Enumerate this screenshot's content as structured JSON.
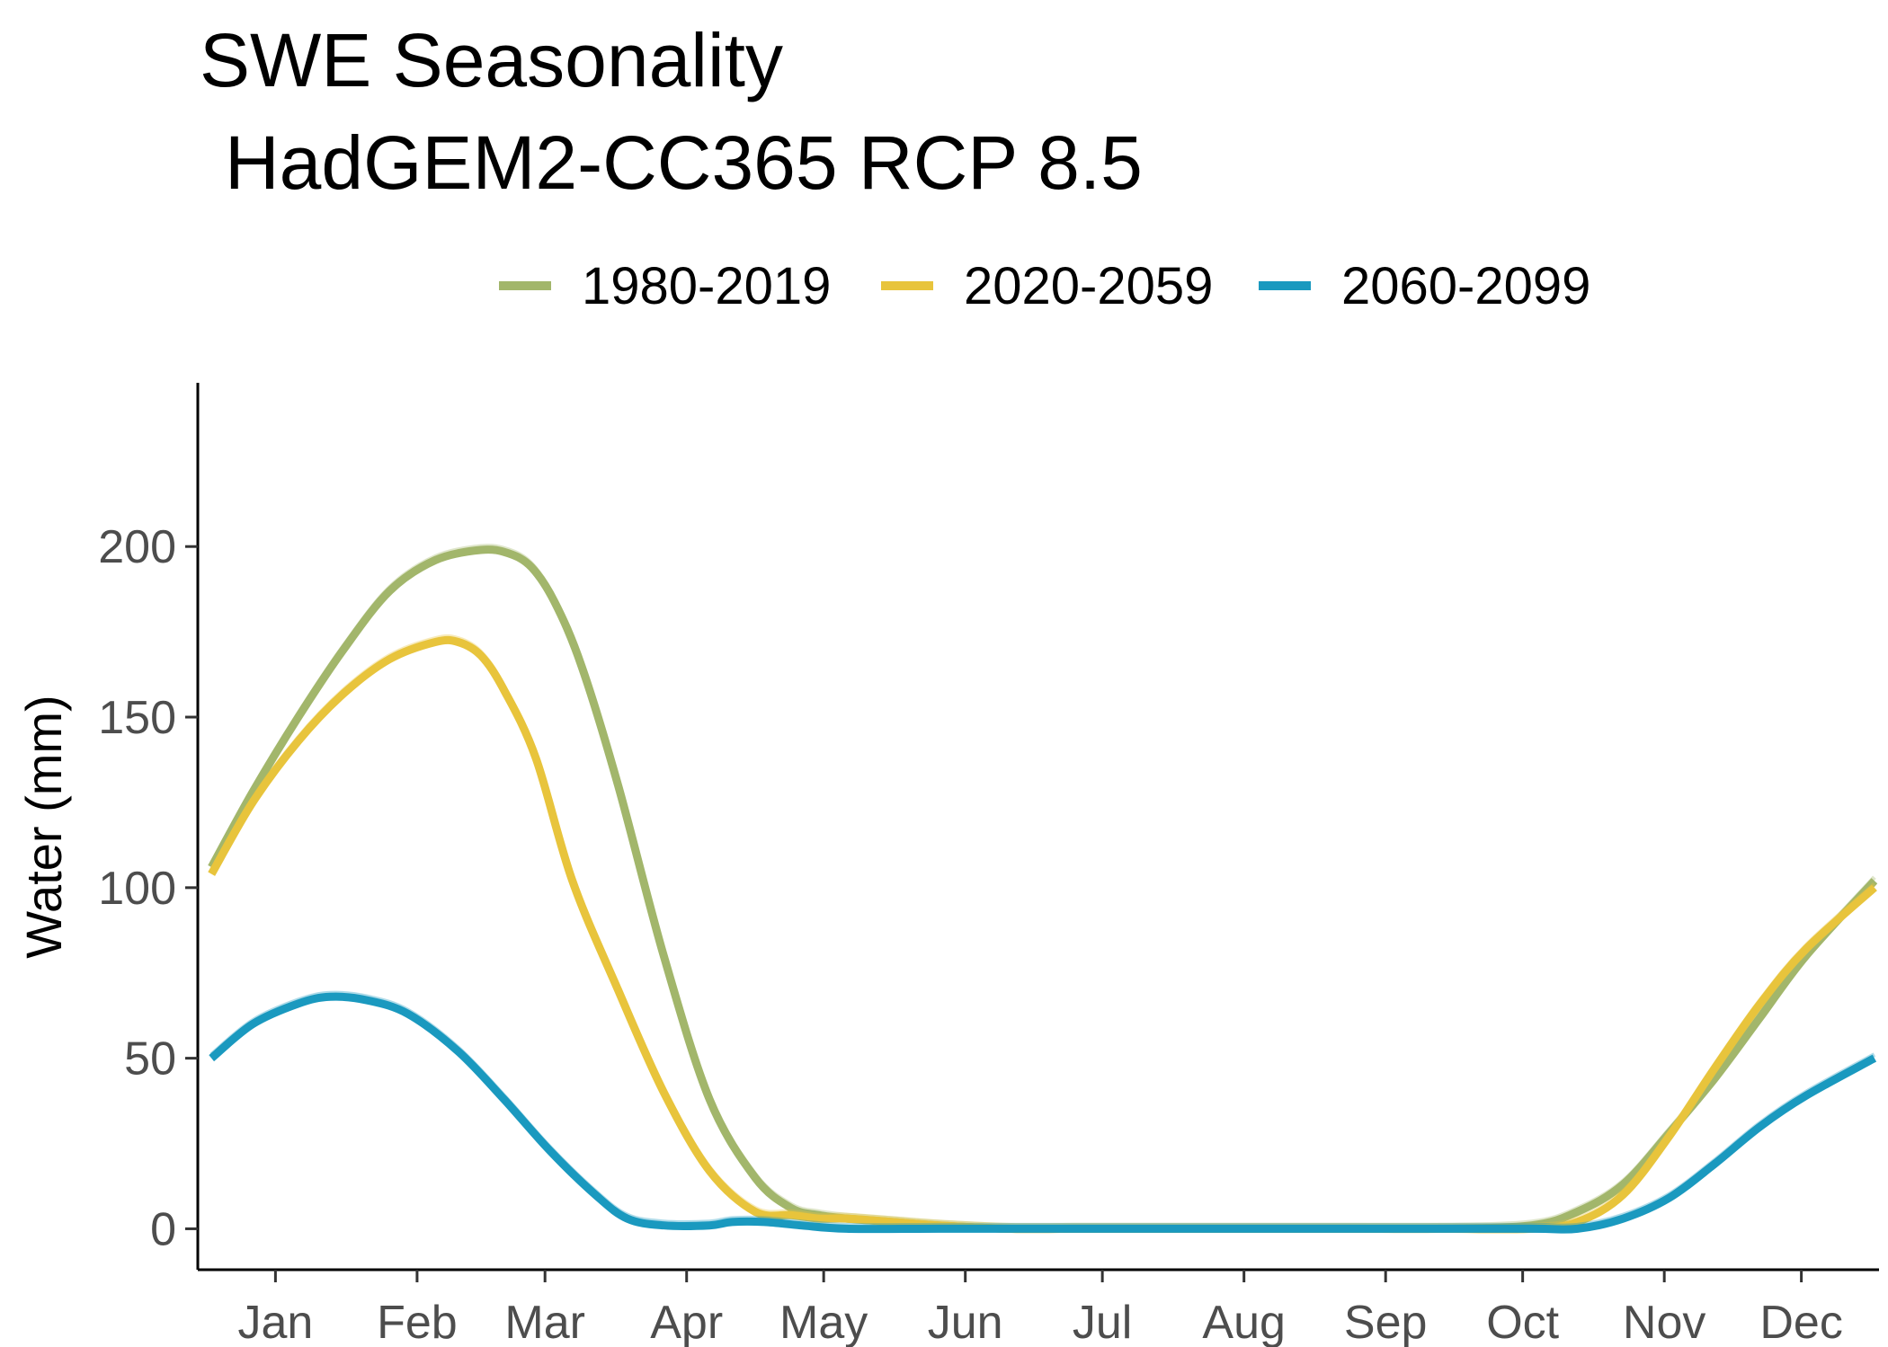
{
  "chart_data": {
    "type": "line",
    "title": "SWE Seasonality",
    "subtitle": "HadGEM2-CC365 RCP 8.5",
    "xlabel": "",
    "ylabel": "Water (mm)",
    "x_unit": "day of year",
    "xlim": [
      -2,
      366
    ],
    "ylim": [
      -12,
      248
    ],
    "x_ticks": [
      {
        "label": "Jan",
        "value": 15
      },
      {
        "label": "Feb",
        "value": 46
      },
      {
        "label": "Mar",
        "value": 74
      },
      {
        "label": "Apr",
        "value": 105
      },
      {
        "label": "May",
        "value": 135
      },
      {
        "label": "Jun",
        "value": 166
      },
      {
        "label": "Jul",
        "value": 196
      },
      {
        "label": "Aug",
        "value": 227
      },
      {
        "label": "Sep",
        "value": 258
      },
      {
        "label": "Oct",
        "value": 288
      },
      {
        "label": "Nov",
        "value": 319
      },
      {
        "label": "Dec",
        "value": 349
      }
    ],
    "y_ticks": [
      0,
      50,
      100,
      150,
      200
    ],
    "grid": false,
    "legend_position": "top",
    "series": [
      {
        "name": "1980-2019",
        "color": "#a2b66b",
        "x": [
          1,
          10,
          20,
          30,
          40,
          50,
          60,
          66,
          71,
          76,
          82,
          90,
          100,
          110,
          120,
          128,
          134,
          140,
          150,
          160,
          175,
          190,
          210,
          230,
          250,
          270,
          290,
          300,
          310,
          320,
          330,
          340,
          350,
          365
        ],
        "y": [
          106,
          128,
          150,
          170,
          187,
          196,
          199,
          198,
          194,
          184,
          165,
          130,
          80,
          38,
          15,
          6,
          4,
          3,
          2,
          1,
          0,
          0,
          0,
          0,
          0,
          0,
          1,
          5,
          13,
          28,
          44,
          62,
          80,
          102
        ]
      },
      {
        "name": "2020-2059",
        "color": "#e8c43c",
        "x": [
          1,
          10,
          20,
          30,
          40,
          50,
          55,
          60,
          65,
          72,
          80,
          90,
          100,
          110,
          120,
          128,
          134,
          140,
          150,
          160,
          175,
          190,
          210,
          230,
          250,
          270,
          290,
          300,
          310,
          320,
          330,
          340,
          350,
          365
        ],
        "y": [
          104,
          125,
          143,
          157,
          167,
          172,
          172,
          168,
          158,
          138,
          102,
          70,
          40,
          17,
          5,
          4,
          3,
          3,
          2,
          1,
          0,
          0,
          0,
          0,
          0,
          0,
          0,
          2,
          10,
          27,
          47,
          66,
          82,
          100
        ]
      },
      {
        "name": "2060-2099",
        "color": "#1a99bf",
        "x": [
          1,
          10,
          20,
          27,
          35,
          44,
          55,
          65,
          75,
          85,
          92,
          100,
          110,
          115,
          122,
          130,
          140,
          160,
          180,
          200,
          230,
          260,
          290,
          300,
          310,
          320,
          330,
          340,
          350,
          365
        ],
        "y": [
          50,
          60,
          66,
          68,
          67,
          63,
          52,
          38,
          23,
          10,
          3,
          1,
          1,
          2,
          2,
          1,
          0,
          0,
          0,
          0,
          0,
          0,
          0,
          0,
          3,
          9,
          19,
          30,
          39,
          50
        ]
      }
    ]
  }
}
